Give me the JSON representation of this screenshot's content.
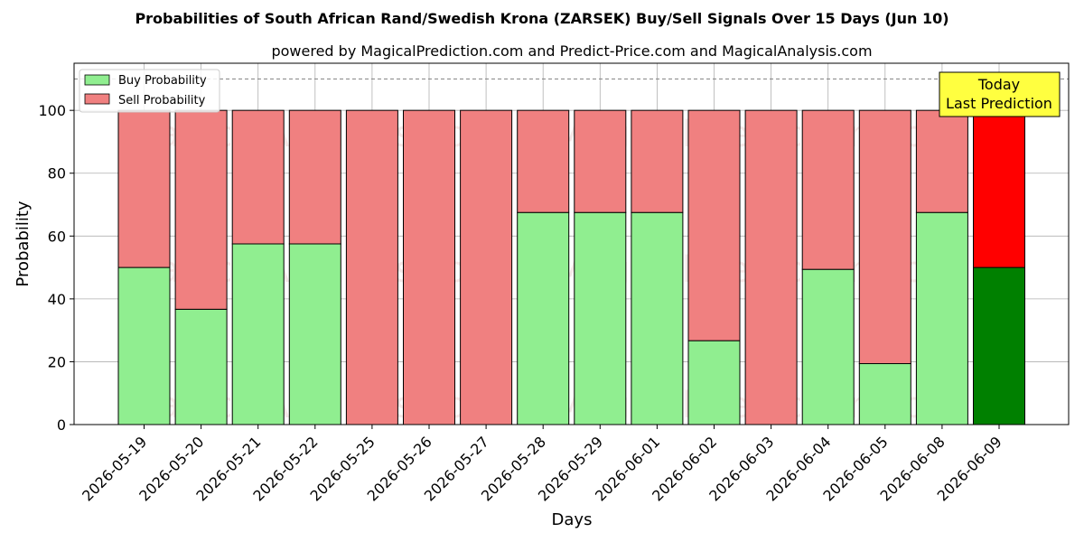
{
  "chart_data": {
    "type": "bar",
    "stacked": true,
    "title": "Probabilities of South African Rand/Swedish Krona (ZARSEK) Buy/Sell Signals Over 15 Days (Jun 10)",
    "subtitle": "powered by MagicalPrediction.com and Predict-Price.com and MagicalAnalysis.com",
    "xlabel": "Days",
    "ylabel": "Probability",
    "ylim": [
      0,
      115
    ],
    "yticks": [
      0,
      20,
      40,
      60,
      80,
      100
    ],
    "grid": true,
    "legend_position": "top-left",
    "reference_line": 110,
    "categories": [
      "2026-05-19",
      "2026-05-20",
      "2026-05-21",
      "2026-05-22",
      "2026-05-25",
      "2026-05-26",
      "2026-05-27",
      "2026-05-28",
      "2026-05-29",
      "2026-06-01",
      "2026-06-02",
      "2026-06-03",
      "2026-06-04",
      "2026-06-05",
      "2026-06-08",
      "2026-06-09"
    ],
    "series": [
      {
        "name": "Buy Probability",
        "color": "#90ee90",
        "highlight_color": "#008000",
        "values": [
          50,
          36.7,
          57.5,
          57.5,
          0,
          0,
          0,
          67.5,
          67.5,
          67.5,
          26.7,
          0,
          49.4,
          19.4,
          67.5,
          50
        ]
      },
      {
        "name": "Sell Probability",
        "color": "#f08080",
        "highlight_color": "#ff0000",
        "values": [
          50,
          63.3,
          42.5,
          42.5,
          100,
          100,
          100,
          32.5,
          32.5,
          32.5,
          73.3,
          100,
          50.6,
          80.6,
          32.5,
          50
        ]
      }
    ],
    "highlight_index": 15,
    "annotation": {
      "line1": "Today",
      "line2": "Last Prediction",
      "color": "#ffff40"
    },
    "watermarks": [
      "MagicalAnalysis.com",
      "MagicalPrediction.com"
    ]
  }
}
